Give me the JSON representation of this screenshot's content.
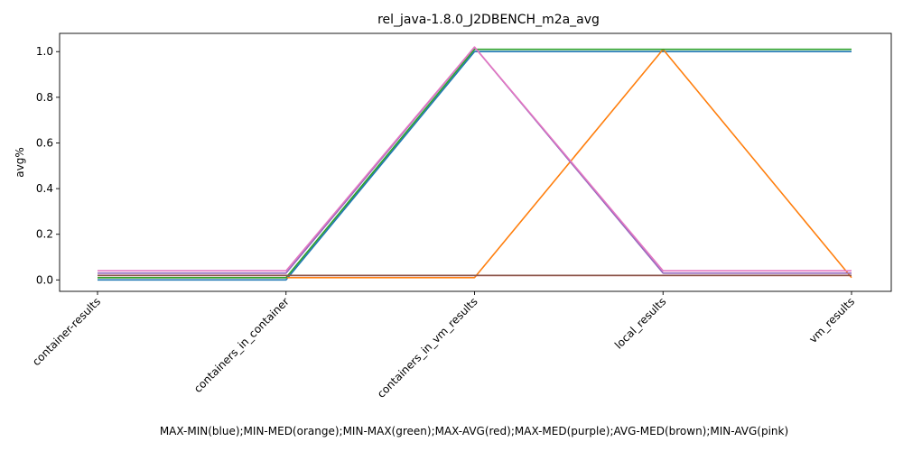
{
  "chart_data": {
    "type": "line",
    "title": "rel_java-1.8.0_J2DBENCH_m2a_avg",
    "xlabel": "MAX-MIN(blue);MIN-MED(orange);MIN-MAX(green);MAX-AVG(red);MAX-MED(purple);AVG-MED(brown);MIN-AVG(pink)",
    "ylabel": "avg%",
    "categories": [
      "container-results",
      "containers_in_container",
      "containers_in_vm_results",
      "local_results",
      "vm_results"
    ],
    "ylim": [
      -0.05,
      1.08
    ],
    "yticks": [
      "0.0",
      "0.2",
      "0.4",
      "0.6",
      "0.8",
      "1.0"
    ],
    "grid": false,
    "series": [
      {
        "color": "#1f77b4",
        "values": [
          0.0,
          0.0,
          1.0,
          1.0,
          1.0
        ]
      },
      {
        "color": "#ff7f0e",
        "values": [
          0.01,
          0.01,
          0.01,
          1.01,
          0.01
        ]
      },
      {
        "color": "#2ca02c",
        "values": [
          0.01,
          0.01,
          1.01,
          1.01,
          1.01
        ]
      },
      {
        "color": "#d62728",
        "values": [
          0.02,
          0.02,
          0.02,
          0.02,
          0.02
        ]
      },
      {
        "color": "#9467bd",
        "values": [
          0.03,
          0.03,
          1.02,
          0.03,
          0.03
        ]
      },
      {
        "color": "#8c564b",
        "values": [
          0.02,
          0.02,
          0.02,
          0.02,
          0.02
        ]
      },
      {
        "color": "#e377c2",
        "values": [
          0.04,
          0.04,
          1.02,
          0.04,
          0.04
        ]
      }
    ]
  }
}
